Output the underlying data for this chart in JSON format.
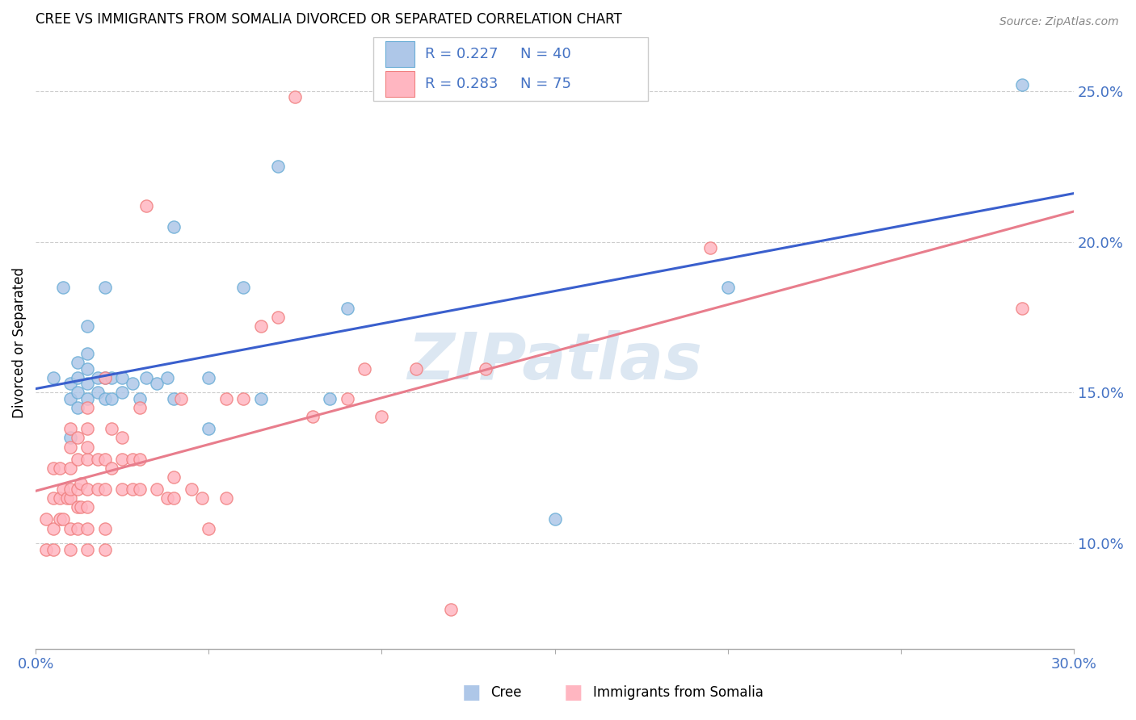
{
  "title": "CREE VS IMMIGRANTS FROM SOMALIA DIVORCED OR SEPARATED CORRELATION CHART",
  "source": "Source: ZipAtlas.com",
  "ylabel": "Divorced or Separated",
  "ylabel_right_ticks": [
    "10.0%",
    "15.0%",
    "20.0%",
    "25.0%"
  ],
  "ylabel_right_vals": [
    0.1,
    0.15,
    0.2,
    0.25
  ],
  "xmin": 0.0,
  "xmax": 0.3,
  "ymin": 0.065,
  "ymax": 0.268,
  "cree_color": "#aec7e8",
  "cree_edge_color": "#6baed6",
  "somalia_color": "#ffb6c1",
  "somalia_edge_color": "#f08080",
  "cree_line_color": "#3a5fcd",
  "somalia_line_color": "#e87d8c",
  "legend_text_color": "#4472c4",
  "watermark": "ZIPatlas",
  "watermark_color": "#c5d8ea",
  "cree_x": [
    0.005,
    0.008,
    0.01,
    0.01,
    0.01,
    0.012,
    0.012,
    0.012,
    0.012,
    0.015,
    0.015,
    0.015,
    0.015,
    0.015,
    0.018,
    0.018,
    0.02,
    0.02,
    0.02,
    0.022,
    0.022,
    0.025,
    0.025,
    0.028,
    0.03,
    0.032,
    0.035,
    0.038,
    0.04,
    0.04,
    0.05,
    0.05,
    0.06,
    0.065,
    0.07,
    0.085,
    0.09,
    0.15,
    0.2,
    0.285
  ],
  "cree_y": [
    0.155,
    0.185,
    0.135,
    0.148,
    0.153,
    0.145,
    0.15,
    0.155,
    0.16,
    0.148,
    0.153,
    0.158,
    0.163,
    0.172,
    0.15,
    0.155,
    0.148,
    0.155,
    0.185,
    0.148,
    0.155,
    0.15,
    0.155,
    0.153,
    0.148,
    0.155,
    0.153,
    0.155,
    0.148,
    0.205,
    0.138,
    0.155,
    0.185,
    0.148,
    0.225,
    0.148,
    0.178,
    0.108,
    0.185,
    0.252
  ],
  "somalia_x": [
    0.003,
    0.003,
    0.005,
    0.005,
    0.005,
    0.005,
    0.007,
    0.007,
    0.007,
    0.008,
    0.008,
    0.009,
    0.01,
    0.01,
    0.01,
    0.01,
    0.01,
    0.01,
    0.01,
    0.012,
    0.012,
    0.012,
    0.012,
    0.012,
    0.013,
    0.013,
    0.015,
    0.015,
    0.015,
    0.015,
    0.015,
    0.015,
    0.015,
    0.015,
    0.018,
    0.018,
    0.02,
    0.02,
    0.02,
    0.02,
    0.02,
    0.022,
    0.022,
    0.025,
    0.025,
    0.025,
    0.028,
    0.028,
    0.03,
    0.03,
    0.03,
    0.032,
    0.035,
    0.038,
    0.04,
    0.04,
    0.042,
    0.045,
    0.048,
    0.05,
    0.055,
    0.055,
    0.06,
    0.065,
    0.07,
    0.075,
    0.08,
    0.09,
    0.095,
    0.1,
    0.11,
    0.12,
    0.13,
    0.195,
    0.285
  ],
  "somalia_y": [
    0.098,
    0.108,
    0.098,
    0.105,
    0.115,
    0.125,
    0.108,
    0.115,
    0.125,
    0.108,
    0.118,
    0.115,
    0.098,
    0.105,
    0.115,
    0.118,
    0.125,
    0.132,
    0.138,
    0.105,
    0.112,
    0.118,
    0.128,
    0.135,
    0.112,
    0.12,
    0.098,
    0.105,
    0.112,
    0.118,
    0.128,
    0.132,
    0.138,
    0.145,
    0.118,
    0.128,
    0.098,
    0.105,
    0.118,
    0.128,
    0.155,
    0.125,
    0.138,
    0.118,
    0.128,
    0.135,
    0.118,
    0.128,
    0.118,
    0.128,
    0.145,
    0.212,
    0.118,
    0.115,
    0.115,
    0.122,
    0.148,
    0.118,
    0.115,
    0.105,
    0.115,
    0.148,
    0.148,
    0.172,
    0.175,
    0.248,
    0.142,
    0.148,
    0.158,
    0.142,
    0.158,
    0.078,
    0.158,
    0.198,
    0.178
  ]
}
